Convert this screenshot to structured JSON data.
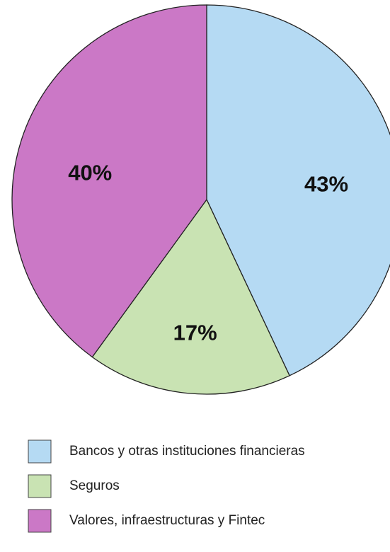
{
  "chart_data": {
    "type": "pie",
    "categories": [
      "Bancos y otras instituciones financieras",
      "Seguros",
      "Valores, infraestructuras y Fintec"
    ],
    "values": [
      43,
      17,
      40
    ],
    "value_labels": [
      "43%",
      "17%",
      "40%"
    ],
    "colors": [
      "#b5daf3",
      "#c9e3b3",
      "#cb78c6"
    ]
  }
}
